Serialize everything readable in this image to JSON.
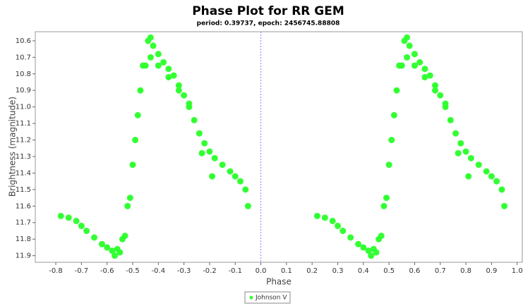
{
  "chart_data": {
    "type": "scatter",
    "title": "Phase Plot for RR GEM",
    "subtitle": "period: 0.39737, epoch: 2456745.88808",
    "x_label": "Phase",
    "y_label": "Brightness (magnitude)",
    "xlim": [
      -0.88,
      1.02
    ],
    "ylim": [
      11.94,
      10.545
    ],
    "xticks": [
      -0.8,
      -0.7,
      -0.6,
      -0.5,
      -0.4,
      -0.3,
      -0.2,
      -0.1,
      {
        "value": 0,
        "label": "0.0"
      },
      0.1,
      0.2,
      0.3,
      0.4,
      0.5,
      0.6,
      0.7,
      0.8,
      0.9,
      {
        "value": 1,
        "label": "1.0"
      }
    ],
    "yticks": [
      10.6,
      10.7,
      10.8,
      10.9,
      {
        "value": 11,
        "label": "11.0"
      },
      11.1,
      11.2,
      11.3,
      11.4,
      11.5,
      11.6,
      11.7,
      11.8,
      11.9
    ],
    "vline": 0,
    "vline_color": "#8080ff",
    "legend": "bottom",
    "series": [
      {
        "name": "Johnson V",
        "color": "#33ff33",
        "x": [
          -0.78,
          -0.75,
          -0.72,
          -0.7,
          -0.68,
          -0.65,
          -0.62,
          -0.6,
          -0.58,
          -0.56,
          -0.54,
          -0.52,
          -0.5,
          -0.48,
          -0.46,
          -0.44,
          -0.43,
          -0.42,
          -0.4,
          -0.38,
          -0.36,
          -0.34,
          -0.32,
          -0.3,
          -0.28,
          -0.26,
          -0.24,
          -0.22,
          -0.2,
          -0.18,
          -0.15,
          -0.12,
          -0.1,
          -0.08,
          -0.06,
          -0.05,
          -0.57,
          -0.55,
          -0.53,
          -0.51,
          -0.49,
          -0.47,
          -0.45,
          -0.43,
          -0.4,
          -0.36,
          -0.32,
          -0.28,
          -0.23,
          -0.19,
          0.22,
          0.25,
          0.28,
          0.3,
          0.32,
          0.35,
          0.38,
          0.4,
          0.42,
          0.44,
          0.46,
          0.48,
          0.5,
          0.52,
          0.54,
          0.56,
          0.57,
          0.58,
          0.6,
          0.62,
          0.64,
          0.66,
          0.68,
          0.7,
          0.72,
          0.74,
          0.76,
          0.78,
          0.8,
          0.82,
          0.85,
          0.88,
          0.9,
          0.92,
          0.94,
          0.95,
          0.43,
          0.45,
          0.47,
          0.49,
          0.51,
          0.53,
          0.55,
          0.57,
          0.6,
          0.64,
          0.68,
          0.72,
          0.77,
          0.81
        ],
        "values": [
          11.66,
          11.67,
          11.69,
          11.72,
          11.75,
          11.79,
          11.83,
          11.85,
          11.87,
          11.86,
          11.8,
          11.6,
          11.35,
          11.05,
          10.75,
          10.6,
          10.58,
          10.63,
          10.68,
          10.73,
          10.77,
          10.81,
          10.87,
          10.93,
          11.0,
          11.08,
          11.16,
          11.22,
          11.27,
          11.31,
          11.35,
          11.39,
          11.42,
          11.45,
          11.5,
          11.6,
          11.9,
          11.88,
          11.78,
          11.55,
          11.2,
          10.9,
          10.75,
          10.7,
          10.75,
          10.82,
          10.9,
          10.98,
          11.28,
          11.42,
          11.66,
          11.67,
          11.69,
          11.72,
          11.75,
          11.79,
          11.83,
          11.85,
          11.87,
          11.86,
          11.8,
          11.6,
          11.35,
          11.05,
          10.75,
          10.6,
          10.58,
          10.63,
          10.68,
          10.73,
          10.77,
          10.81,
          10.87,
          10.93,
          11.0,
          11.08,
          11.16,
          11.22,
          11.27,
          11.31,
          11.35,
          11.39,
          11.42,
          11.45,
          11.5,
          11.6,
          11.9,
          11.88,
          11.78,
          11.55,
          11.2,
          10.9,
          10.75,
          10.7,
          10.75,
          10.82,
          10.9,
          10.98,
          11.28,
          11.42
        ]
      }
    ]
  }
}
